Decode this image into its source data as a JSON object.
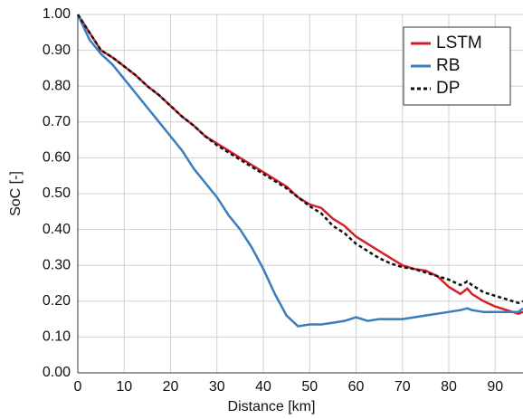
{
  "chart_data": {
    "type": "line",
    "x_label": "Distance [km]",
    "y_label": "SoC [-]",
    "x": [
      0,
      2.5,
      5,
      7.5,
      10,
      12.5,
      15,
      17.5,
      20,
      22.5,
      25,
      27.5,
      30,
      32.5,
      35,
      37.5,
      40,
      42.5,
      45,
      47.5,
      50,
      52.5,
      55,
      57.5,
      60,
      62.5,
      65,
      67.5,
      70,
      72.5,
      75,
      77.5,
      80,
      82.5,
      84,
      85,
      87.5,
      90,
      92.5,
      95,
      96
    ],
    "series": [
      {
        "name": "LSTM",
        "color": "#d42028",
        "dash": false,
        "values": [
          1.0,
          0.95,
          0.9,
          0.88,
          0.855,
          0.83,
          0.8,
          0.775,
          0.745,
          0.715,
          0.69,
          0.66,
          0.64,
          0.62,
          0.6,
          0.58,
          0.56,
          0.54,
          0.52,
          0.49,
          0.47,
          0.46,
          0.43,
          0.41,
          0.38,
          0.36,
          0.34,
          0.32,
          0.3,
          0.29,
          0.285,
          0.27,
          0.24,
          0.22,
          0.235,
          0.22,
          0.2,
          0.185,
          0.175,
          0.165,
          0.17
        ]
      },
      {
        "name": "RB",
        "color": "#3a7dbf",
        "dash": false,
        "values": [
          1.0,
          0.93,
          0.89,
          0.86,
          0.82,
          0.78,
          0.74,
          0.7,
          0.66,
          0.62,
          0.57,
          0.53,
          0.49,
          0.44,
          0.4,
          0.35,
          0.29,
          0.22,
          0.16,
          0.13,
          0.135,
          0.135,
          0.14,
          0.145,
          0.155,
          0.145,
          0.15,
          0.15,
          0.15,
          0.155,
          0.16,
          0.165,
          0.17,
          0.175,
          0.18,
          0.175,
          0.17,
          0.17,
          0.17,
          0.17,
          0.18
        ]
      },
      {
        "name": "DP",
        "color": "#111111",
        "dash": true,
        "values": [
          1.0,
          0.95,
          0.9,
          0.88,
          0.855,
          0.83,
          0.8,
          0.775,
          0.745,
          0.715,
          0.69,
          0.66,
          0.635,
          0.615,
          0.595,
          0.575,
          0.555,
          0.535,
          0.515,
          0.49,
          0.465,
          0.445,
          0.41,
          0.39,
          0.36,
          0.34,
          0.32,
          0.305,
          0.295,
          0.29,
          0.28,
          0.27,
          0.26,
          0.245,
          0.255,
          0.245,
          0.225,
          0.215,
          0.205,
          0.195,
          0.2
        ]
      }
    ],
    "xlim": [
      0,
      96
    ],
    "ylim": [
      0,
      1
    ],
    "xticks": [
      0,
      10,
      20,
      30,
      40,
      50,
      60,
      70,
      80,
      90
    ],
    "yticks": [
      {
        "value": 0,
        "label": "0.00"
      },
      {
        "value": 0.1,
        "label": "0.10"
      },
      {
        "value": 0.2,
        "label": "0.20"
      },
      {
        "value": 0.3,
        "label": "0.30"
      },
      {
        "value": 0.4,
        "label": "0.40"
      },
      {
        "value": 0.5,
        "label": "0.50"
      },
      {
        "value": 0.6,
        "label": "0.60"
      },
      {
        "value": 0.7,
        "label": "0.70"
      },
      {
        "value": 0.8,
        "label": "0.80"
      },
      {
        "value": 0.9,
        "label": "0.90"
      },
      {
        "value": 1,
        "label": "1.00"
      }
    ],
    "grid": true,
    "legend": "top-right"
  }
}
